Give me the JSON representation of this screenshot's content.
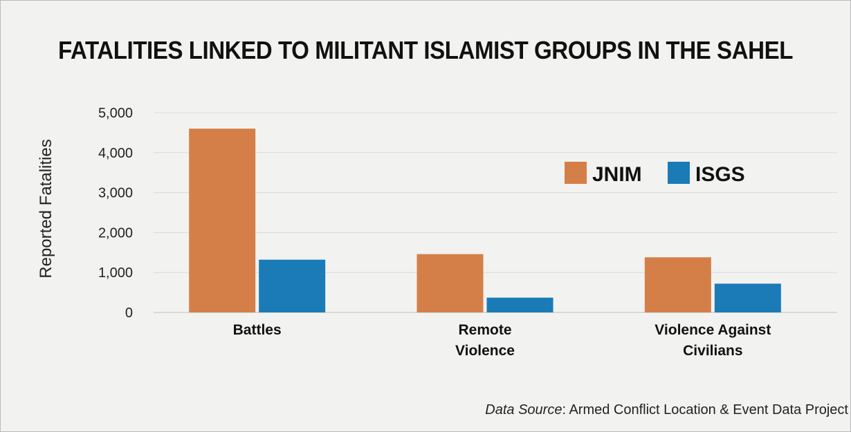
{
  "chart_data": {
    "type": "bar",
    "title": "FATALITIES LINKED TO MILITANT ISLAMIST GROUPS IN THE SAHEL",
    "xlabel": "",
    "ylabel": "Reported Fatalities",
    "categories": [
      [
        "Battles"
      ],
      [
        "Remote",
        "Violence"
      ],
      [
        "Violence Against",
        "Civilians"
      ]
    ],
    "series": [
      {
        "name": "JNIM",
        "color": "#d57f48",
        "values": [
          4600,
          1460,
          1380
        ]
      },
      {
        "name": "ISGS",
        "color": "#1b7bb7",
        "values": [
          1320,
          370,
          720
        ]
      }
    ],
    "yticks": [
      0,
      1000,
      2000,
      3000,
      4000,
      5000
    ],
    "ytick_labels": [
      "0",
      "1,000",
      "2,000",
      "3,000",
      "4,000",
      "5,000"
    ],
    "ylim": [
      0,
      5000
    ],
    "grid": true,
    "legend_position": "top-right"
  },
  "source": {
    "label": "Data Source",
    "text": ": Armed Conflict Location & Event Data Project"
  }
}
